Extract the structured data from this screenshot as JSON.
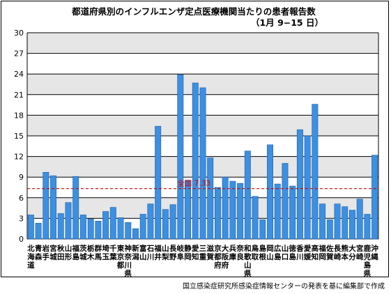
{
  "chart_data": {
    "type": "bar",
    "title": "都道府県別のインフルエンザ定点医療機関当たりの患者報告数",
    "subtitle": "（1月 9−15 日）",
    "source": "国立感染症研究所感染症情報センターの発表を基に編集部で作成",
    "ylim": [
      0,
      30
    ],
    "yticks": [
      0,
      3,
      6,
      9,
      12,
      15,
      18,
      21,
      24,
      27,
      30
    ],
    "grid": true,
    "bar_color": "#3d8fe0",
    "band_color": "#e6e6e6",
    "reference": {
      "label": "全国 7.33",
      "value": 7.33,
      "color": "#cc0000"
    },
    "categories": [
      "北海道",
      "青森",
      "岩手",
      "宮城",
      "秋田",
      "山形",
      "福島",
      "茨城",
      "栃木",
      "群馬",
      "埼玉",
      "千葉",
      "東京都",
      "神奈川県",
      "新潟",
      "富山",
      "石川",
      "福井",
      "山梨",
      "長野",
      "岐阜",
      "静岡",
      "愛知",
      "三重",
      "滋賀",
      "京都府",
      "大阪府",
      "兵庫",
      "奈良",
      "和歌山県",
      "鳥取",
      "島根",
      "岡山",
      "広島",
      "山口",
      "徳島",
      "香川",
      "愛媛",
      "高知",
      "福岡",
      "佐賀",
      "長崎",
      "熊本",
      "大分",
      "宮崎",
      "鹿児島県",
      "沖縄"
    ],
    "values": [
      3.5,
      2.3,
      9.7,
      9.2,
      3.7,
      5.3,
      9.1,
      3.5,
      2.9,
      2.6,
      4.0,
      4.6,
      3.1,
      2.4,
      1.5,
      3.6,
      5.1,
      16.4,
      4.3,
      5.0,
      23.9,
      8.5,
      22.7,
      22.0,
      11.8,
      7.5,
      9.0,
      8.4,
      8.1,
      12.8,
      6.2,
      2.8,
      13.7,
      8.0,
      11.0,
      7.7,
      15.9,
      15.0,
      19.6,
      5.1,
      2.8,
      5.1,
      4.7,
      4.2,
      5.8,
      3.6,
      12.2
    ]
  }
}
